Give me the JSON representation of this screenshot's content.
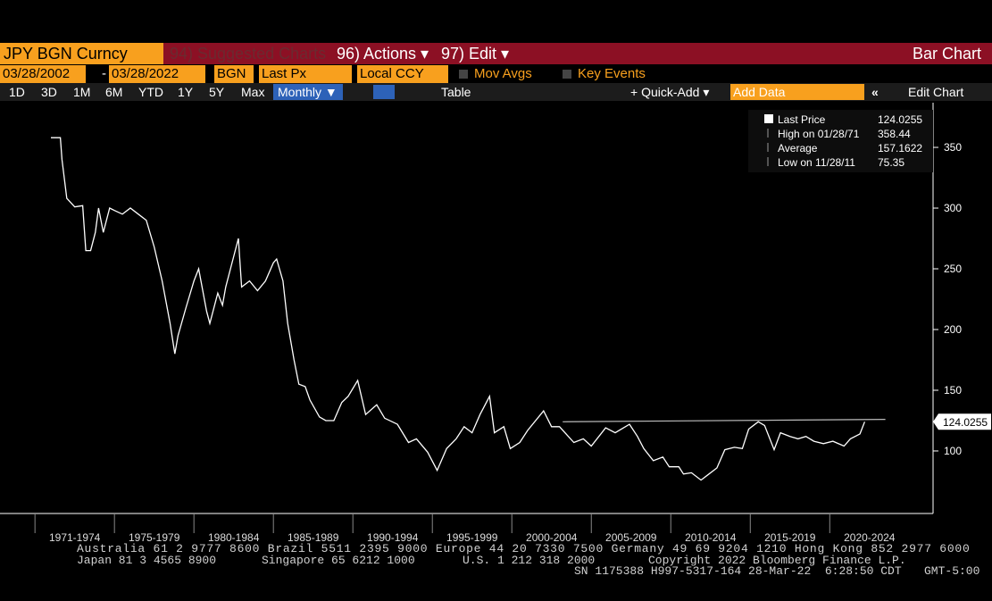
{
  "header": {
    "security": "JPY BGN Curncy",
    "menus": [
      "94) Suggested Charts",
      "96) Actions ▾",
      "97) Edit ▾"
    ],
    "title": "Bar Chart"
  },
  "toolbar1": {
    "start": "03/28/2002",
    "separator": "-",
    "end": "03/28/2022",
    "source": "BGN",
    "field": "Last Px",
    "currency": "Local CCY",
    "mov_avgs": "Mov Avgs",
    "key_events": "Key Events"
  },
  "toolbar2": {
    "periods": [
      "1D",
      "3D",
      "1M",
      "6M",
      "YTD",
      "1Y",
      "5Y",
      "Max"
    ],
    "frequency": "Monthly ▼",
    "table": "Table",
    "quick_add": "+ Quick-Add ▾",
    "add_data": "Add Data",
    "collapse": "«",
    "edit_chart": "Edit Chart"
  },
  "chart_data": {
    "type": "line",
    "x": [
      1971.0,
      1971.6,
      1971.7,
      1972.0,
      1972.5,
      1973.0,
      1973.2,
      1973.5,
      1973.8,
      1974.0,
      1974.3,
      1974.7,
      1975.0,
      1975.5,
      1976.0,
      1976.5,
      1977.0,
      1977.5,
      1978.0,
      1978.5,
      1978.8,
      1979.0,
      1979.5,
      1980.0,
      1980.3,
      1980.8,
      1981.0,
      1981.5,
      1981.8,
      1982.0,
      1982.8,
      1983.0,
      1983.5,
      1984.0,
      1984.5,
      1985.0,
      1985.2,
      1985.6,
      1985.9,
      1986.3,
      1986.6,
      1987.0,
      1987.3,
      1987.9,
      1988.3,
      1988.8,
      1989.3,
      1989.7,
      1990.3,
      1990.8,
      1991.5,
      1992.0,
      1992.8,
      1993.5,
      1994.0,
      1994.7,
      1995.3,
      1995.9,
      1996.5,
      1997.0,
      1997.5,
      1998.0,
      1998.6,
      1998.9,
      1999.5,
      1999.9,
      2000.5,
      2001.0,
      2002.0,
      2002.5,
      2003.0,
      2003.9,
      2004.5,
      2005.0,
      2005.9,
      2006.5,
      2007.4,
      2007.9,
      2008.3,
      2008.9,
      2009.5,
      2009.9,
      2010.5,
      2010.8,
      2011.3,
      2011.9,
      2012.3,
      2012.9,
      2013.4,
      2014.0,
      2014.5,
      2014.9,
      2015.5,
      2015.9,
      2016.5,
      2016.9,
      2017.5,
      2018.0,
      2018.5,
      2019.0,
      2019.6,
      2020.2,
      2020.9,
      2021.3,
      2021.9,
      2022.2
    ],
    "series": [
      {
        "name": "Last Price",
        "color": "#ffffff",
        "values": [
          358,
          358,
          340,
          308,
          301,
          302,
          265,
          265,
          280,
          300,
          280,
          300,
          298,
          295,
          300,
          295,
          290,
          268,
          240,
          205,
          180,
          195,
          218,
          240,
          250,
          215,
          205,
          230,
          220,
          235,
          275,
          235,
          240,
          232,
          240,
          255,
          258,
          240,
          205,
          175,
          155,
          153,
          142,
          128,
          125,
          125,
          140,
          145,
          158,
          130,
          138,
          127,
          122,
          107,
          110,
          99,
          84,
          102,
          110,
          120,
          115,
          130,
          145,
          115,
          120,
          102,
          107,
          117,
          133,
          120,
          120,
          107,
          110,
          104,
          119,
          115,
          122,
          112,
          102,
          92,
          95,
          87,
          87,
          81,
          82,
          76,
          80,
          86,
          101,
          103,
          102,
          118,
          124,
          121,
          101,
          115,
          112,
          110,
          112,
          108,
          106,
          108,
          104,
          110,
          114,
          124.0255
        ]
      }
    ],
    "trendline": {
      "x": [
        2003.2,
        2023.5
      ],
      "values": [
        124,
        126
      ]
    },
    "xlim": [
      1967.8,
      2026.5
    ],
    "xticks": [
      {
        "value": 1970,
        "label": "1971-1974"
      },
      {
        "value": 1975,
        "label": "1975-1979"
      },
      {
        "value": 1980,
        "label": "1980-1984"
      },
      {
        "value": 1985,
        "label": "1985-1989"
      },
      {
        "value": 1990,
        "label": "1990-1994"
      },
      {
        "value": 1995,
        "label": "1995-1999"
      },
      {
        "value": 2000,
        "label": "2000-2004"
      },
      {
        "value": 2005,
        "label": "2005-2009"
      },
      {
        "value": 2010,
        "label": "2010-2014"
      },
      {
        "value": 2015,
        "label": "2015-2019"
      },
      {
        "value": 2020,
        "label": "2020-2024"
      }
    ],
    "ylim": [
      48.5,
      386.8
    ],
    "yticks": [
      100,
      150,
      200,
      250,
      300,
      350
    ],
    "last_value": 124.0255,
    "legend": [
      {
        "label": "Last Price",
        "value": 124.0255
      },
      {
        "label": "High on 01/28/71",
        "value": 358.44
      },
      {
        "label": "Average",
        "value": 157.1622
      },
      {
        "label": "Low on 11/28/11",
        "value": 75.35
      }
    ]
  },
  "footer": [
    "Australia 61 2 9777 8600 Brazil 5511 2395 9000 Europe 44 20 7330 7500 Germany 49 69 9204 1210 Hong Kong 852 2977 6000",
    "Japan 81 3 4565 8900",
    "Singapore 65 6212 1000",
    "U.S. 1 212 318 2000",
    "Copyright 2022 Bloomberg Finance L.P.",
    "SN 1175388 H997-5317-164 28-Mar-22  6:28:50 CDT",
    "GMT-5:00"
  ]
}
